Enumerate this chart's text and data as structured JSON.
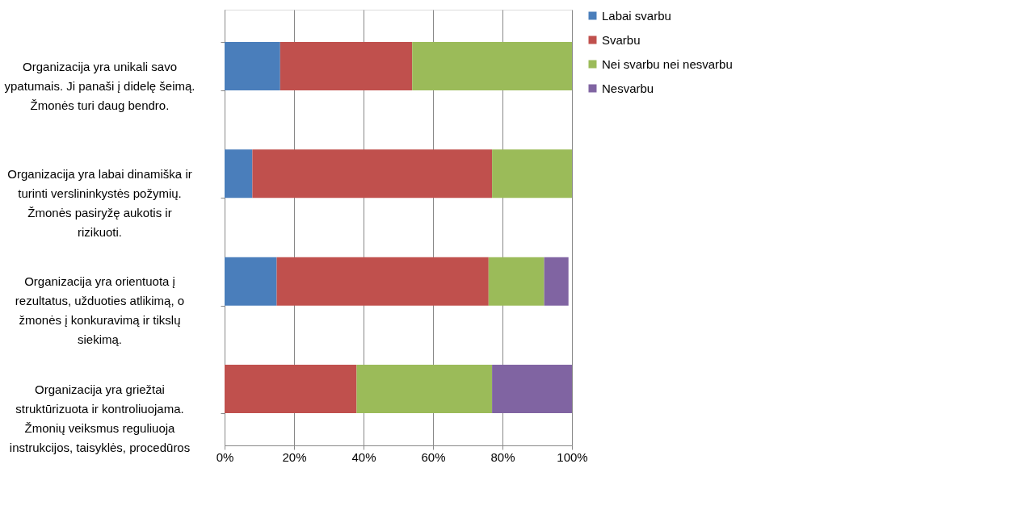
{
  "chart_data": {
    "type": "bar",
    "orientation": "horizontal",
    "stacked": true,
    "categories": [
      "Organizacija yra unikali savo ypatumais. Ji panaši į didelę šeimą. Žmonės turi daug bendro.",
      "Organizacija yra labai dinamiška ir turinti verslininkystės požymių. Žmonės pasiryžę aukotis ir rizikuoti.",
      "Organizacija yra orientuota į rezultatus, užduoties atlikimą, o žmonės į konkuravimą ir tikslų siekimą.",
      "Organizacija yra griežtai struktūrizuota ir kontroliuojama. Žmonių veiksmus reguliuoja instrukcijos, taisyklės, procedūros"
    ],
    "series": [
      {
        "name": "Labai svarbu",
        "color": "#4a7ebb",
        "values": [
          16,
          8,
          15,
          0
        ]
      },
      {
        "name": "Svarbu",
        "color": "#c0504d",
        "values": [
          38,
          69,
          61,
          38
        ]
      },
      {
        "name": "Nei svarbu nei nesvarbu",
        "color": "#9bbb59",
        "values": [
          46,
          23,
          16,
          39
        ]
      },
      {
        "name": "Nesvarbu",
        "color": "#8064a2",
        "values": [
          0,
          0,
          7,
          23
        ]
      }
    ],
    "xlim": [
      0,
      100
    ],
    "xticks": [
      {
        "value": 0,
        "label": "0%"
      },
      {
        "value": 20,
        "label": "20%"
      },
      {
        "value": 40,
        "label": "40%"
      },
      {
        "value": 60,
        "label": "60%"
      },
      {
        "value": 80,
        "label": "80%"
      },
      {
        "value": 100,
        "label": "100%"
      }
    ],
    "grid": "x",
    "legend": "right"
  }
}
